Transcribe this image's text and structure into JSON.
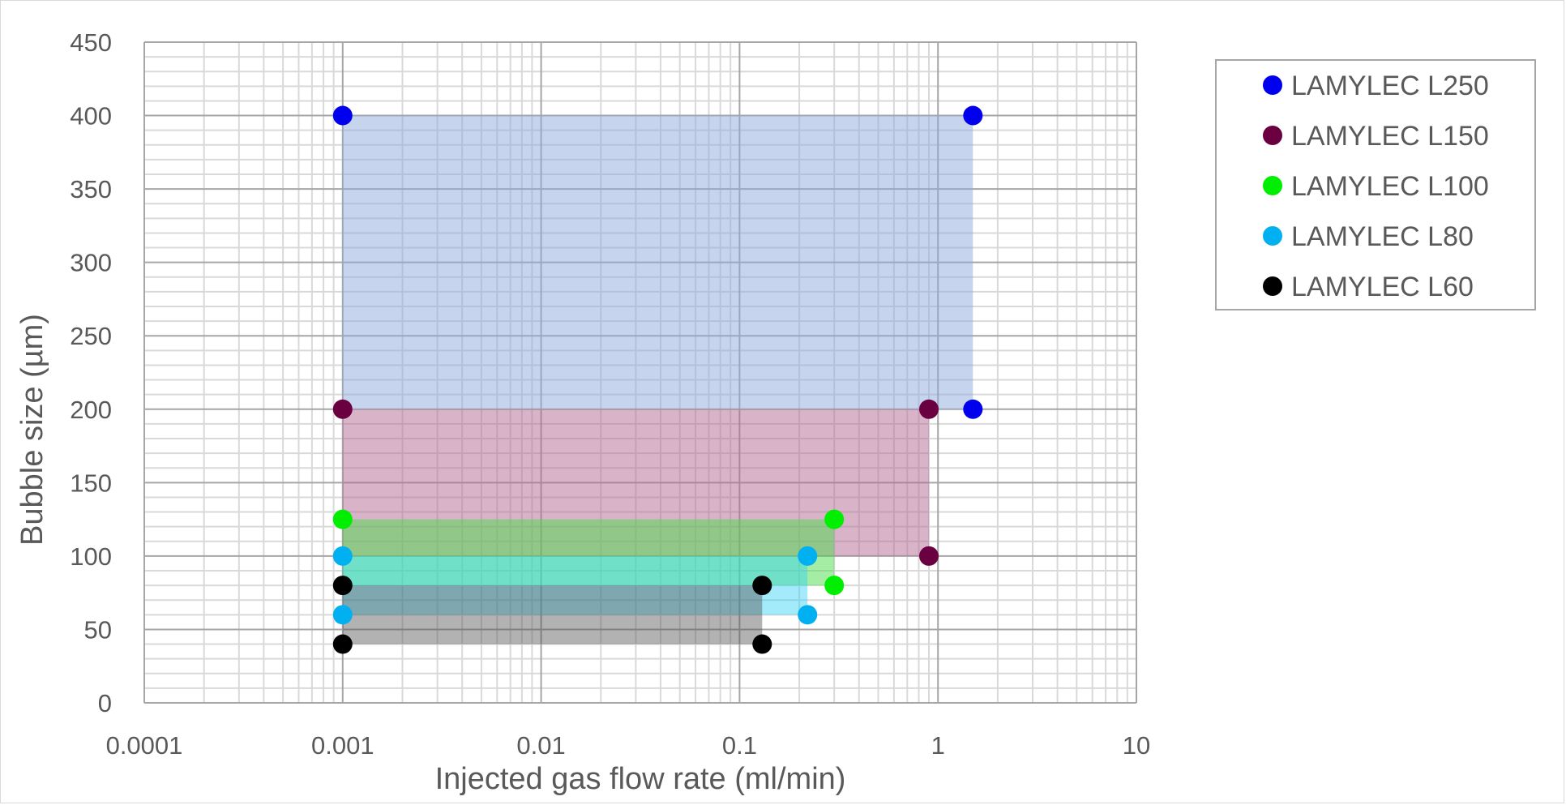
{
  "chart_data": {
    "type": "scatter",
    "title": "",
    "xlabel": "Injected gas flow rate (ml/min)",
    "ylabel": "Bubble size (µm)",
    "x_scale": "log",
    "xlim": [
      0.0001,
      10
    ],
    "ylim": [
      0,
      450
    ],
    "x_ticks": [
      0.0001,
      0.001,
      0.01,
      0.1,
      1,
      10
    ],
    "x_tick_labels": [
      "0.0001",
      "0.001",
      "0.01",
      "0.1",
      "1",
      "10"
    ],
    "y_ticks": [
      0,
      50,
      100,
      150,
      200,
      250,
      300,
      350,
      400,
      450
    ],
    "y_tick_labels": [
      "0",
      "50",
      "100",
      "150",
      "200",
      "250",
      "300",
      "350",
      "400",
      "450"
    ],
    "grid": true,
    "legend_position": "right",
    "series": [
      {
        "name": "LAMYLEC L250",
        "color": "#0000ee",
        "fill": "#8faadc",
        "fill_opacity": 0.5,
        "points": [
          [
            0.001,
            400
          ],
          [
            1.5,
            400
          ],
          [
            1.5,
            200
          ]
        ],
        "region": {
          "x": [
            0.001,
            1.5
          ],
          "y": [
            200,
            400
          ]
        }
      },
      {
        "name": "LAMYLEC L150",
        "color": "#6b0041",
        "fill": "#b46a93",
        "fill_opacity": 0.5,
        "points": [
          [
            0.001,
            200
          ],
          [
            0.9,
            200
          ],
          [
            0.9,
            100
          ]
        ],
        "region": {
          "x": [
            0.001,
            0.9
          ],
          "y": [
            100,
            200
          ]
        }
      },
      {
        "name": "LAMYLEC L100",
        "color": "#00ee00",
        "fill": "#4cd94c",
        "fill_opacity": 0.5,
        "points": [
          [
            0.001,
            125
          ],
          [
            0.3,
            125
          ],
          [
            0.3,
            80
          ]
        ],
        "region": {
          "x": [
            0.001,
            0.3
          ],
          "y": [
            80,
            125
          ]
        }
      },
      {
        "name": "LAMYLEC L80",
        "color": "#00b0f0",
        "fill": "#33d3f5",
        "fill_opacity": 0.45,
        "points": [
          [
            0.001,
            100
          ],
          [
            0.22,
            100
          ],
          [
            0.22,
            60
          ],
          [
            0.001,
            60
          ]
        ],
        "region": {
          "x": [
            0.001,
            0.22
          ],
          "y": [
            60,
            100
          ]
        }
      },
      {
        "name": "LAMYLEC L60",
        "color": "#000000",
        "fill": "#555555",
        "fill_opacity": 0.45,
        "points": [
          [
            0.001,
            80
          ],
          [
            0.13,
            80
          ],
          [
            0.13,
            40
          ],
          [
            0.001,
            40
          ]
        ],
        "region": {
          "x": [
            0.001,
            0.13
          ],
          "y": [
            40,
            80
          ]
        }
      }
    ]
  }
}
